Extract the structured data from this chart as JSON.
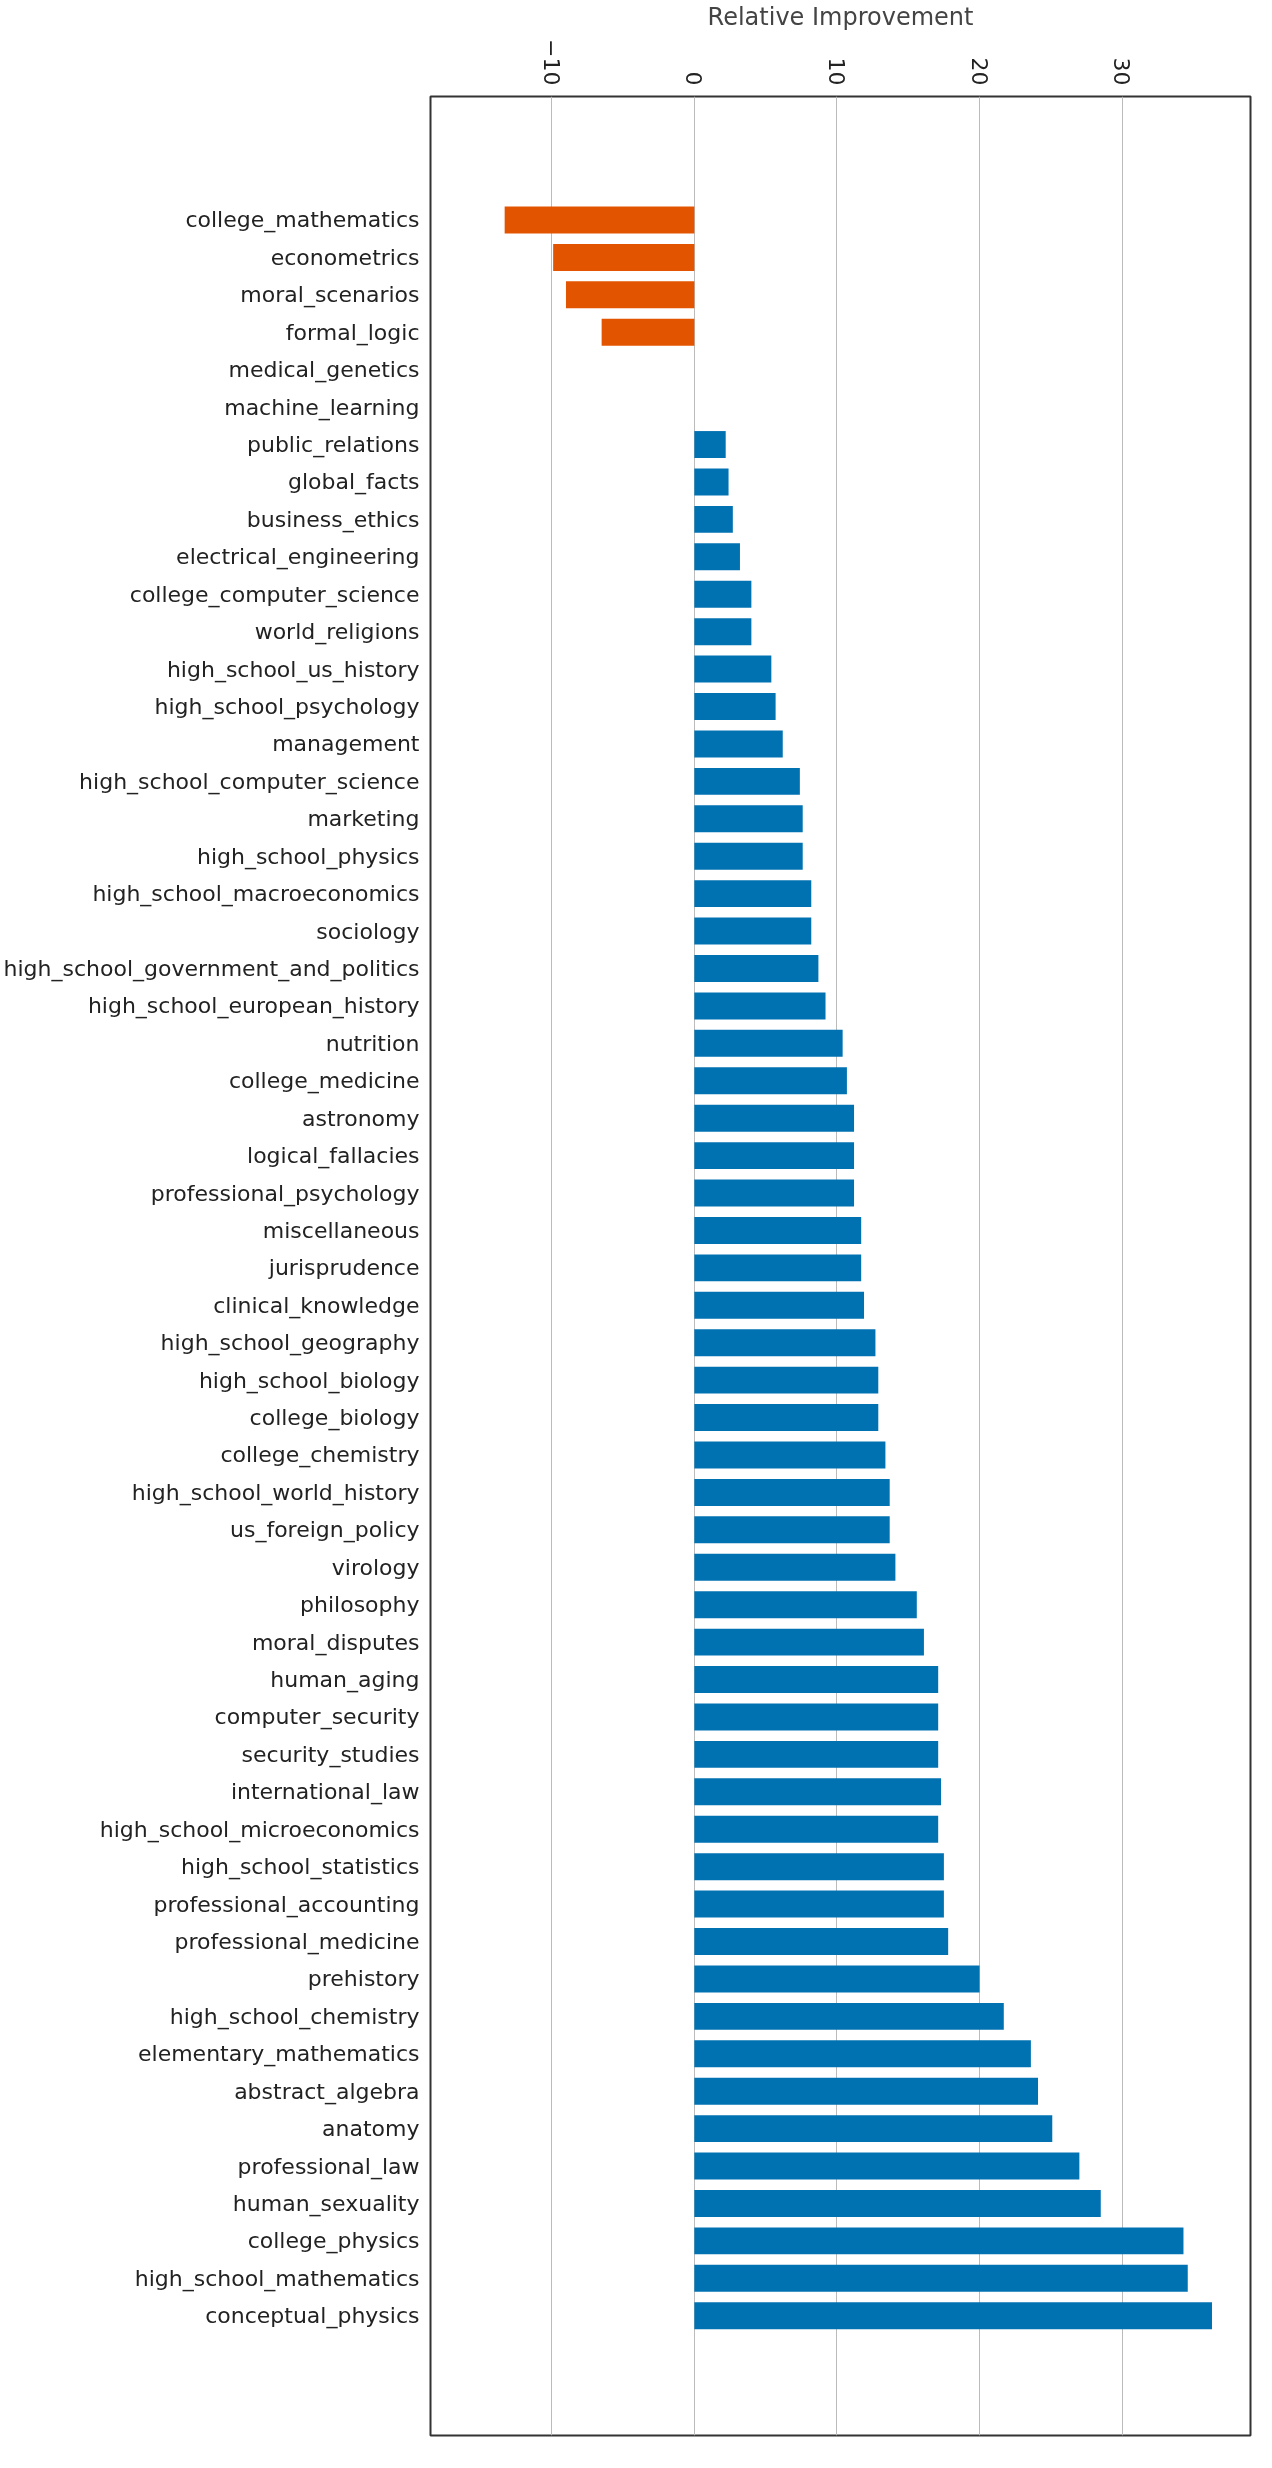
{
  "chart_data": {
    "type": "bar",
    "orientation": "horizontal",
    "xlabel": "Relative Improvement",
    "categories": [
      "college_mathematics",
      "econometrics",
      "moral_scenarios",
      "formal_logic",
      "medical_genetics",
      "machine_learning",
      "public_relations",
      "global_facts",
      "business_ethics",
      "electrical_engineering",
      "college_computer_science",
      "world_religions",
      "high_school_us_history",
      "high_school_psychology",
      "management",
      "high_school_computer_science",
      "marketing",
      "high_school_physics",
      "high_school_macroeconomics",
      "sociology",
      "high_school_government_and_politics",
      "high_school_european_history",
      "nutrition",
      "college_medicine",
      "astronomy",
      "logical_fallacies",
      "professional_psychology",
      "miscellaneous",
      "jurisprudence",
      "clinical_knowledge",
      "high_school_geography",
      "high_school_biology",
      "college_biology",
      "college_chemistry",
      "high_school_world_history",
      "us_foreign_policy",
      "virology",
      "philosophy",
      "moral_disputes",
      "human_aging",
      "computer_security",
      "security_studies",
      "international_law",
      "high_school_microeconomics",
      "high_school_statistics",
      "professional_accounting",
      "professional_medicine",
      "prehistory",
      "high_school_chemistry",
      "elementary_mathematics",
      "abstract_algebra",
      "anatomy",
      "professional_law",
      "human_sexuality",
      "college_physics",
      "high_school_mathematics",
      "conceptual_physics"
    ],
    "values": [
      -13.3,
      -9.9,
      -9.0,
      -6.5,
      0,
      0,
      2.2,
      2.4,
      2.7,
      3.2,
      4.0,
      4.0,
      5.4,
      5.7,
      6.2,
      7.4,
      7.6,
      7.6,
      8.2,
      8.2,
      8.7,
      9.2,
      10.4,
      10.7,
      11.2,
      11.2,
      11.2,
      11.7,
      11.7,
      11.9,
      12.7,
      12.9,
      12.9,
      13.4,
      13.7,
      13.7,
      14.1,
      15.6,
      16.1,
      17.1,
      17.1,
      17.1,
      17.3,
      17.1,
      17.5,
      17.5,
      17.8,
      20.0,
      21.7,
      23.6,
      24.1,
      25.1,
      27.0,
      28.5,
      34.3,
      34.6,
      36.3
    ],
    "colors": [
      "#e35400",
      "#e35400",
      "#e35400",
      "#e35400",
      "#0072b2",
      "#0072b2",
      "#0072b2",
      "#0072b2",
      "#0072b2",
      "#0072b2",
      "#0072b2",
      "#0072b2",
      "#0072b2",
      "#0072b2",
      "#0072b2",
      "#0072b2",
      "#0072b2",
      "#0072b2",
      "#0072b2",
      "#0072b2",
      "#0072b2",
      "#0072b2",
      "#0072b2",
      "#0072b2",
      "#0072b2",
      "#0072b2",
      "#0072b2",
      "#0072b2",
      "#0072b2",
      "#0072b2",
      "#0072b2",
      "#0072b2",
      "#0072b2",
      "#0072b2",
      "#0072b2",
      "#0072b2",
      "#0072b2",
      "#0072b2",
      "#0072b2",
      "#0072b2",
      "#0072b2",
      "#0072b2",
      "#0072b2",
      "#0072b2",
      "#0072b2",
      "#0072b2",
      "#0072b2",
      "#0072b2",
      "#0072b2",
      "#0072b2",
      "#0072b2",
      "#0072b2",
      "#0072b2",
      "#0072b2",
      "#0072b2",
      "#0072b2",
      "#0072b2"
    ],
    "xlim": [
      -18.5,
      39
    ],
    "xticks": [
      {
        "value": -10,
        "label": "−10"
      },
      0,
      10,
      20,
      30
    ],
    "grid": "x"
  }
}
